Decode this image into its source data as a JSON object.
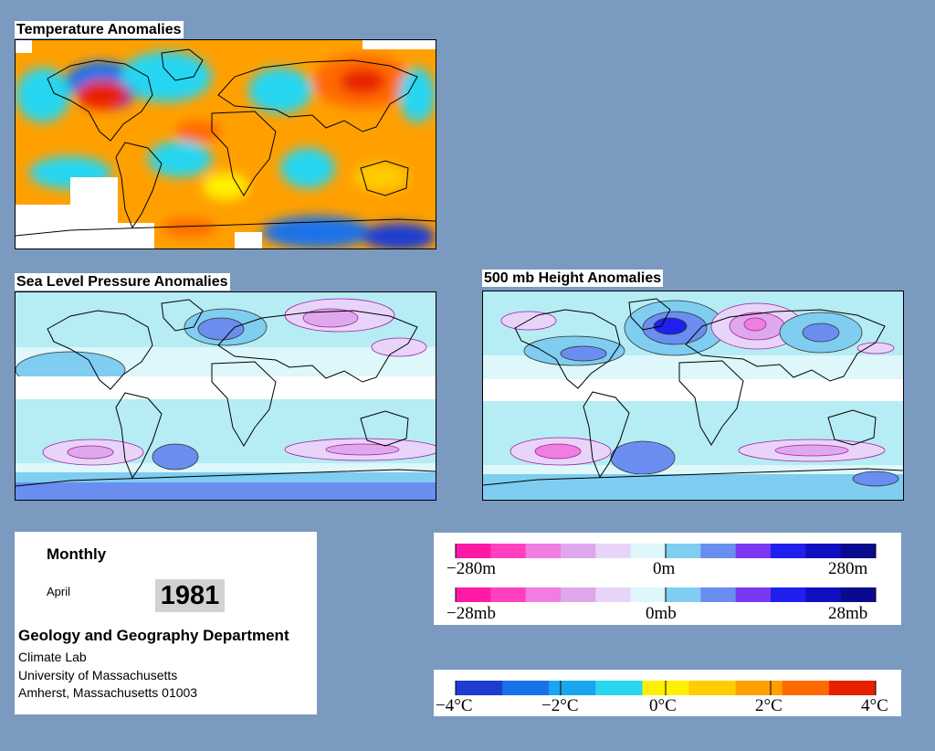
{
  "maps": {
    "temperature": {
      "title": "Temperature Anomalies"
    },
    "slp": {
      "title": "Sea Level Pressure Anomalies"
    },
    "height500": {
      "title": "500 mb Height Anomalies"
    }
  },
  "info": {
    "period": "Monthly",
    "month": "April",
    "year": "1981",
    "department": "Geology and Geography Department",
    "lab": "Climate Lab",
    "university": "University of Massachusetts",
    "address": "Amherst, Massachusetts 01003"
  },
  "legends": {
    "height": {
      "min_label": "−280m",
      "mid_label": "0m",
      "max_label": "280m"
    },
    "pressure": {
      "min_label": "−28mb",
      "mid_label": "0mb",
      "max_label": "28mb"
    },
    "temperature": {
      "labels": [
        "−4°C",
        "−2°C",
        "0°C",
        "2°C",
        "4°C"
      ]
    }
  },
  "colors": {
    "background": "#7b9ac0",
    "anomaly_scale_pos_to_neg": [
      "#ff1aa6",
      "#ff40c0",
      "#f07ee0",
      "#e0a8ec",
      "#e8d4f8",
      "#ddf7fb",
      "#7fcdf0",
      "#6a8ef0",
      "#7a38f0",
      "#2020ee",
      "#1010c0",
      "#0a0a8e"
    ],
    "temperature_scale": [
      "#1e3cd0",
      "#1a72e8",
      "#1aa6ee",
      "#28d6f0",
      "#fff000",
      "#ffcc00",
      "#ffa000",
      "#ff6a00",
      "#e82000"
    ]
  },
  "icons": [
    "coastline-map"
  ]
}
